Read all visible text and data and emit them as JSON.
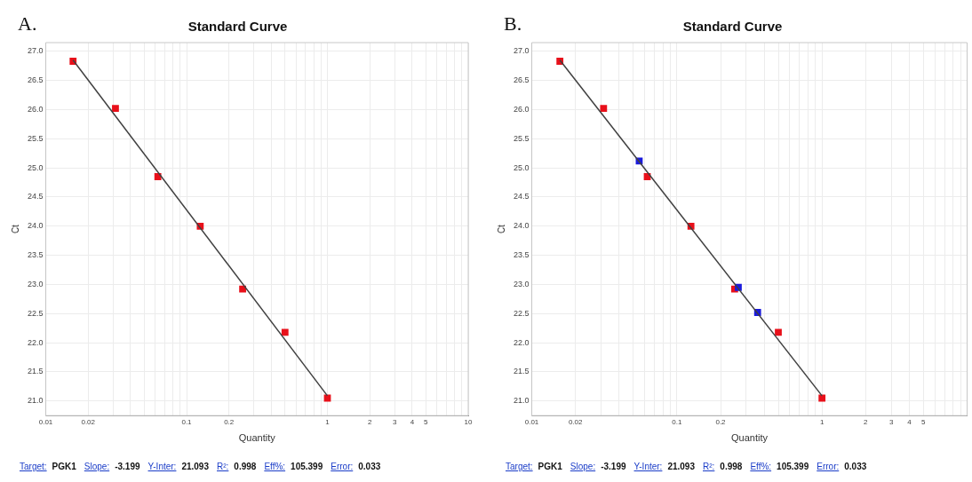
{
  "chart_data": [
    {
      "type": "scatter",
      "title": "Standard Curve",
      "xlabel": "Quantity",
      "ylabel": "Ct",
      "log": "x",
      "grid": true,
      "legend": false,
      "marker": "square",
      "xlim": [
        0.01,
        10
      ],
      "ylim": [
        20.75,
        27.15
      ],
      "xticks": [
        0.01,
        0.02,
        {
          "value": 0.03,
          "label": null
        },
        {
          "value": 0.04,
          "label": null
        },
        {
          "value": 0.05,
          "label": null
        },
        {
          "value": 0.06,
          "label": null
        },
        {
          "value": 0.07,
          "label": null
        },
        {
          "value": 0.08,
          "label": null
        },
        {
          "value": 0.09,
          "label": null
        },
        0.1,
        0.2,
        {
          "value": 0.3,
          "label": null
        },
        {
          "value": 0.4,
          "label": null
        },
        {
          "value": 0.5,
          "label": null
        },
        {
          "value": 0.6,
          "label": null
        },
        {
          "value": 0.7,
          "label": null
        },
        {
          "value": 0.8,
          "label": null
        },
        {
          "value": 0.9,
          "label": null
        },
        1,
        2,
        3,
        4,
        5,
        {
          "value": 6,
          "label": null
        },
        {
          "value": 7,
          "label": null
        },
        {
          "value": 8,
          "label": null
        },
        {
          "value": 9,
          "label": null
        },
        10
      ],
      "yticks": [
        {
          "value": 21,
          "label": "21.0"
        },
        21.5,
        {
          "value": 22,
          "label": "22.0"
        },
        22.5,
        {
          "value": 23,
          "label": "23.0"
        },
        23.5,
        {
          "value": 24,
          "label": "24.0"
        },
        24.5,
        {
          "value": 25,
          "label": "25.0"
        },
        25.5,
        {
          "value": 26,
          "label": "26.0"
        },
        26.5,
        {
          "value": 27,
          "label": "27.0"
        }
      ],
      "series": [
        {
          "color": "#e8101a",
          "x": [
            0.015625,
            0.03125,
            0.0625,
            0.125,
            0.25,
            0.5,
            1
          ],
          "values": [
            26.83,
            26.02,
            24.85,
            24.0,
            22.92,
            22.18,
            21.05
          ]
        },
        {
          "type": "line",
          "color": "#404040",
          "marker": "none",
          "x": [
            0.015625,
            1
          ],
          "values": [
            26.85,
            21.09
          ]
        }
      ],
      "annotations": [
        "A.",
        "Target:",
        "PGK1",
        "Slope:",
        "-3.199",
        "Y-Inter:",
        "21.093",
        "R²:",
        "0.998",
        "Eff%:",
        "105.399",
        "Error:",
        "0.033"
      ]
    },
    {
      "type": "scatter",
      "title": "Standard Curve",
      "xlabel": "Quantity",
      "ylabel": "Ct",
      "log": "x",
      "grid": true,
      "legend": false,
      "marker": "square",
      "xlim": [
        0.01,
        10
      ],
      "ylim": [
        20.75,
        27.15
      ],
      "xticks": [
        0.01,
        0.02,
        {
          "value": 0.03,
          "label": null
        },
        {
          "value": 0.04,
          "label": null
        },
        {
          "value": 0.05,
          "label": null
        },
        {
          "value": 0.06,
          "label": null
        },
        {
          "value": 0.07,
          "label": null
        },
        {
          "value": 0.08,
          "label": null
        },
        {
          "value": 0.09,
          "label": null
        },
        0.1,
        0.2,
        {
          "value": 0.3,
          "label": null
        },
        {
          "value": 0.4,
          "label": null
        },
        {
          "value": 0.5,
          "label": null
        },
        {
          "value": 0.6,
          "label": null
        },
        {
          "value": 0.7,
          "label": null
        },
        {
          "value": 0.8,
          "label": null
        },
        {
          "value": 0.9,
          "label": null
        },
        1,
        2,
        3,
        4,
        5,
        {
          "value": 6,
          "label": null
        },
        {
          "value": 7,
          "label": null
        },
        {
          "value": 8,
          "label": null
        },
        {
          "value": 9,
          "label": null
        },
        {
          "value": 10,
          "label": null
        }
      ],
      "yticks": [
        {
          "value": 21,
          "label": "21.0"
        },
        21.5,
        {
          "value": 22,
          "label": "22.0"
        },
        22.5,
        {
          "value": 23,
          "label": "23.0"
        },
        23.5,
        {
          "value": 24,
          "label": "24.0"
        },
        24.5,
        {
          "value": 25,
          "label": "25.0"
        },
        25.5,
        {
          "value": 26,
          "label": "26.0"
        },
        26.5,
        {
          "value": 27,
          "label": "27.0"
        }
      ],
      "series": [
        {
          "color": "#1a1adc",
          "x": [
            0.055,
            0.265,
            0.36
          ],
          "values": [
            25.12,
            22.95,
            22.52
          ]
        },
        {
          "color": "#e8101a",
          "x": [
            0.015625,
            0.03125,
            0.0625,
            0.125,
            0.25,
            0.5,
            1
          ],
          "values": [
            26.83,
            26.02,
            24.85,
            24.0,
            22.92,
            22.18,
            21.05
          ]
        },
        {
          "type": "line",
          "color": "#404040",
          "marker": "none",
          "x": [
            0.015625,
            1
          ],
          "values": [
            26.85,
            21.09
          ]
        }
      ],
      "annotations": [
        "B.",
        "Target:",
        "PGK1",
        "Slope:",
        "-3.199",
        "Y-Inter:",
        "21.093",
        "R²:",
        "0.998",
        "Eff%:",
        "105.399",
        "Error:",
        "0.033"
      ]
    }
  ]
}
